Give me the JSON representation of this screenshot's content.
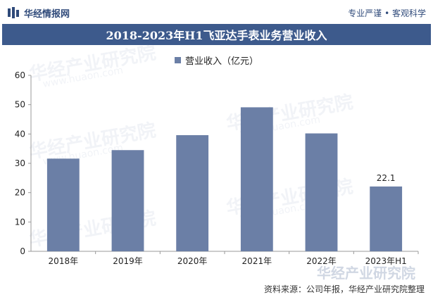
{
  "header": {
    "brand": "华经情报网",
    "tagline": "专业严谨 • 客观科学"
  },
  "watermark": {
    "text": "华经产业研究院",
    "url": "www.huaon.com"
  },
  "colors": {
    "bar": "#6b7fa6",
    "title_bg": "#3d5a8c",
    "accent": "#2f4a7a"
  },
  "chart_data": {
    "type": "bar",
    "title": "2018-2023年H1飞亚达手表业务营业收入",
    "categories": [
      "2018年",
      "2019年",
      "2020年",
      "2021年",
      "2022年",
      "2023年H1"
    ],
    "series": [
      {
        "name": "营业收入（亿元）",
        "values": [
          31.6,
          34.5,
          39.6,
          49.1,
          40.2,
          22.1
        ]
      }
    ],
    "data_labels": [
      null,
      null,
      null,
      null,
      null,
      "22.1"
    ],
    "ylim": [
      0,
      60
    ],
    "yticks": [
      "0",
      "10",
      "20",
      "30",
      "40",
      "50",
      "60"
    ],
    "legend_position": "top-center",
    "grid": false
  },
  "footer": {
    "source": "资料来源：公司年报，华经产业研究院整理"
  }
}
